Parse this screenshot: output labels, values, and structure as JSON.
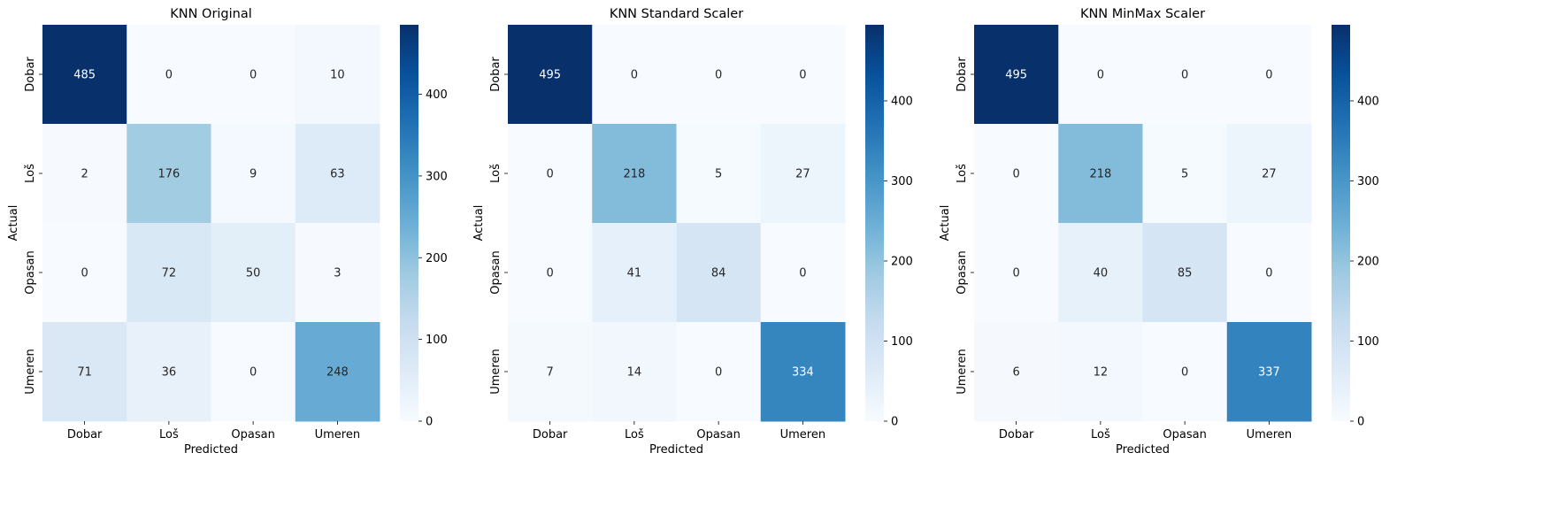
{
  "chart_data": [
    {
      "type": "heatmap",
      "title": "KNN Original",
      "xlabel": "Predicted",
      "ylabel": "Actual",
      "x_categories": [
        "Dobar",
        "Loš",
        "Opasan",
        "Umeren"
      ],
      "y_categories": [
        "Dobar",
        "Loš",
        "Opasan",
        "Umeren"
      ],
      "values": [
        [
          485,
          0,
          0,
          10
        ],
        [
          2,
          176,
          9,
          63
        ],
        [
          0,
          72,
          50,
          3
        ],
        [
          71,
          36,
          0,
          248
        ]
      ],
      "colorbar": {
        "min": 0,
        "max": 485,
        "ticks": [
          0,
          100,
          200,
          300,
          400
        ]
      },
      "colormap": "Blues"
    },
    {
      "type": "heatmap",
      "title": "KNN Standard Scaler",
      "xlabel": "Predicted",
      "ylabel": "Actual",
      "x_categories": [
        "Dobar",
        "Loš",
        "Opasan",
        "Umeren"
      ],
      "y_categories": [
        "Dobar",
        "Loš",
        "Opasan",
        "Umeren"
      ],
      "values": [
        [
          495,
          0,
          0,
          0
        ],
        [
          0,
          218,
          5,
          27
        ],
        [
          0,
          41,
          84,
          0
        ],
        [
          7,
          14,
          0,
          334
        ]
      ],
      "colorbar": {
        "min": 0,
        "max": 495,
        "ticks": [
          0,
          100,
          200,
          300,
          400
        ]
      },
      "colormap": "Blues"
    },
    {
      "type": "heatmap",
      "title": "KNN MinMax Scaler",
      "xlabel": "Predicted",
      "ylabel": "Actual",
      "x_categories": [
        "Dobar",
        "Loš",
        "Opasan",
        "Umeren"
      ],
      "y_categories": [
        "Dobar",
        "Loš",
        "Opasan",
        "Umeren"
      ],
      "values": [
        [
          495,
          0,
          0,
          0
        ],
        [
          0,
          218,
          5,
          27
        ],
        [
          0,
          40,
          85,
          0
        ],
        [
          6,
          12,
          0,
          337
        ]
      ],
      "colorbar": {
        "min": 0,
        "max": 495,
        "ticks": [
          0,
          100,
          200,
          300,
          400
        ]
      },
      "colormap": "Blues"
    }
  ],
  "colors": {
    "cmap_stops": [
      "#f7fbff",
      "#deebf7",
      "#c6dbef",
      "#9ecae1",
      "#6baed6",
      "#4292c6",
      "#2171b5",
      "#08519c",
      "#08306b"
    ],
    "text_dark": "#262626",
    "text_light": "#ffffff"
  }
}
